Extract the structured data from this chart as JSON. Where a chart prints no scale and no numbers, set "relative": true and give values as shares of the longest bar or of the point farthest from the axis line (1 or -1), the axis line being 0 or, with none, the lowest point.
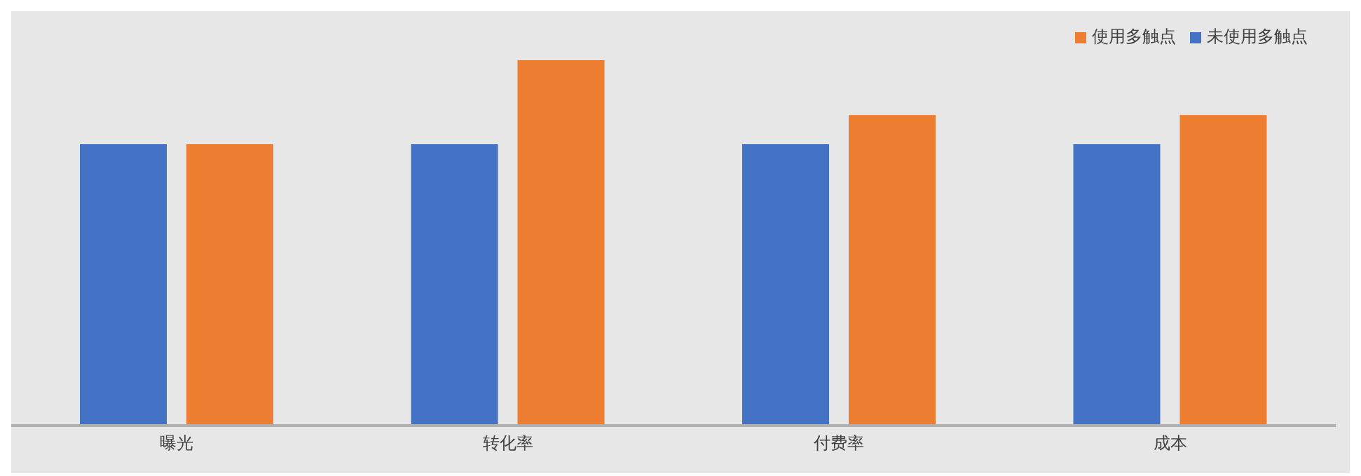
{
  "chart_data": {
    "type": "bar",
    "relative": true,
    "categories": [
      "曝光",
      "转化率",
      "付费率",
      "成本"
    ],
    "series": [
      {
        "name": "未使用多触点",
        "color": "#4472c4",
        "values": [
          0.77,
          0.77,
          0.77,
          0.77
        ]
      },
      {
        "name": "使用多触点",
        "color": "#ed7d31",
        "values": [
          0.77,
          1,
          0.85,
          0.85
        ]
      }
    ],
    "legend": "top right",
    "grid": false
  }
}
